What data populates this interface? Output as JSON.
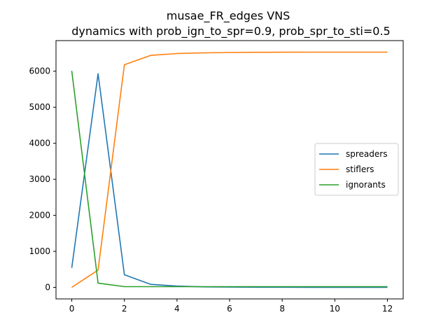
{
  "chart_data": {
    "type": "line",
    "title": "musae_FR_edges VNS",
    "subtitle": "dynamics with prob_ign_to_spr=0.9, prob_spr_to_sti=0.5",
    "xlabel": "",
    "ylabel": "",
    "x": [
      0,
      1,
      2,
      3,
      4,
      5,
      6,
      7,
      8,
      9,
      10,
      11,
      12
    ],
    "xlim": [
      -0.6,
      12.6
    ],
    "ylim": [
      -320,
      6850
    ],
    "xticks": [
      0,
      2,
      4,
      6,
      8,
      10,
      12
    ],
    "yticks": [
      0,
      1000,
      2000,
      3000,
      4000,
      5000,
      6000
    ],
    "grid": false,
    "legend_position": "center-right",
    "series": [
      {
        "name": "spreaders",
        "color": "#1f77b4",
        "values": [
          540,
          5930,
          350,
          85,
          35,
          15,
          8,
          5,
          4,
          3,
          3,
          3,
          3
        ]
      },
      {
        "name": "stiflers",
        "color": "#ff7f0e",
        "values": [
          0,
          480,
          6180,
          6440,
          6490,
          6510,
          6520,
          6525,
          6528,
          6530,
          6530,
          6530,
          6530
        ]
      },
      {
        "name": "ignorants",
        "color": "#2ca02c",
        "values": [
          6010,
          120,
          20,
          20,
          20,
          20,
          20,
          20,
          20,
          20,
          20,
          20,
          20
        ]
      }
    ]
  }
}
